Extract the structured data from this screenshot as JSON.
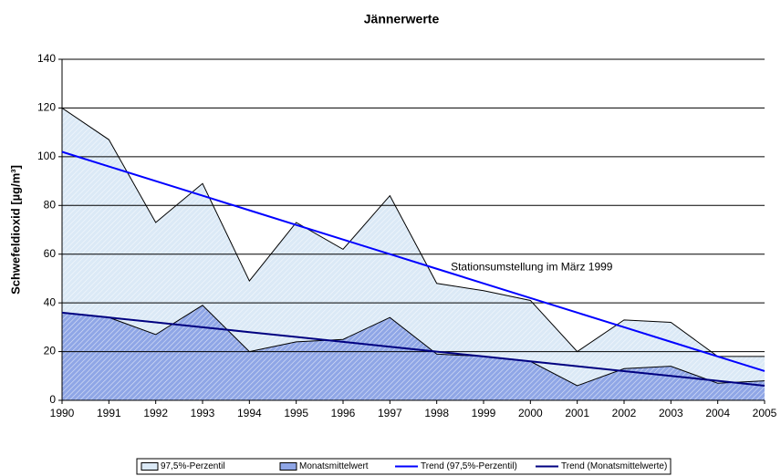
{
  "chart_data": {
    "type": "area-line",
    "title": "Jännerwerte",
    "y_label": "Schwefeldioxid [µg/m³]",
    "annotation": "Stationsumstellung im März 1999",
    "x": [
      1990,
      1991,
      1992,
      1993,
      1994,
      1995,
      1996,
      1997,
      1998,
      1999,
      2000,
      2001,
      2002,
      2003,
      2004,
      2005
    ],
    "xlim": [
      1990,
      2005
    ],
    "xticks": [
      1990,
      1991,
      1992,
      1993,
      1994,
      1995,
      1996,
      1997,
      1998,
      1999,
      2000,
      2001,
      2002,
      2003,
      2004,
      2005
    ],
    "ylim": [
      0,
      140
    ],
    "yticks": [
      0,
      20,
      40,
      60,
      80,
      100,
      120,
      140
    ],
    "grid": true,
    "series": [
      {
        "name": "97,5%-Perzentil",
        "kind": "area",
        "color": "#dbe9f6",
        "values": [
          120,
          107,
          73,
          89,
          49,
          73,
          62,
          84,
          48,
          45,
          41,
          20,
          33,
          32,
          18,
          18
        ]
      },
      {
        "name": "Monatsmittelwert",
        "kind": "area",
        "color": "#8fa6e6",
        "values": [
          36,
          34,
          27,
          39,
          20,
          24,
          25,
          34,
          19,
          18,
          16,
          6,
          13,
          14,
          7,
          8
        ]
      },
      {
        "name": "Trend (97,5%-Perzentil)",
        "kind": "line",
        "color": "#0000ff",
        "values": [
          102,
          96,
          90,
          84,
          78,
          72,
          66,
          60,
          54,
          48,
          42,
          36,
          30,
          24,
          18,
          12
        ]
      },
      {
        "name": "Trend (Monatsmittelwerte)",
        "kind": "line",
        "color": "#000080",
        "values": [
          36,
          34,
          32,
          30,
          28,
          26,
          24,
          22,
          20,
          18,
          16,
          14,
          12,
          10,
          8,
          6
        ]
      }
    ]
  }
}
